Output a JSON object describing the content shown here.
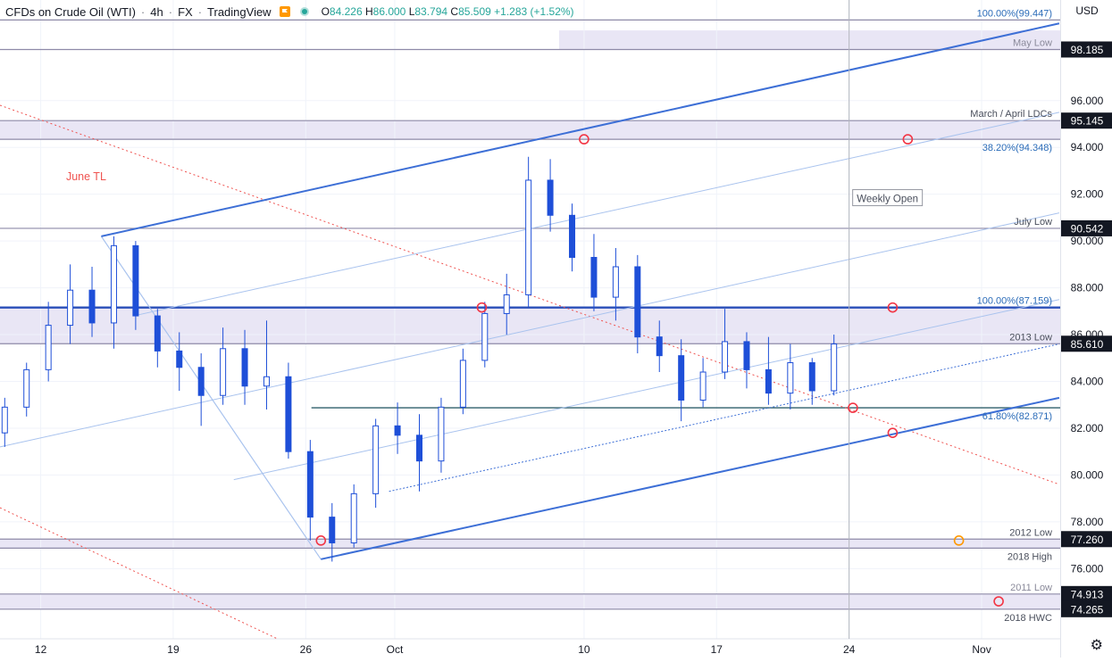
{
  "header": {
    "symbol": "CFDs on Crude Oil (WTI)",
    "interval": "4h",
    "exchange": "FX",
    "platform": "TradingView",
    "open_label": "O",
    "open": "84.226",
    "high_label": "H",
    "high": "86.000",
    "low_label": "L",
    "low": "83.794",
    "close_label": "C",
    "close": "85.509",
    "change": "+1.283 (+1.52%)"
  },
  "currency": "USD",
  "colors": {
    "up": "#1e4fd8",
    "down": "#1e4fd8",
    "channel": "#3d6fd6",
    "inner": "#a9c3ee",
    "zone": "#e9e6f5",
    "trendline": "#ef5350",
    "marker": "#f23645",
    "marker_alt": "#ff9800",
    "teal_line": "#2f5f6a",
    "tag_bg": "#131722"
  },
  "chart_data": {
    "type": "candlestick",
    "title": "CFDs on Crude Oil (WTI) 4h",
    "ylim": [
      73.0,
      100.3
    ],
    "yticks": [
      "76.000",
      "78.000",
      "80.000",
      "82.000",
      "84.000",
      "86.000",
      "88.000",
      "90.000",
      "92.000",
      "94.000",
      "96.000"
    ],
    "x_labels": [
      {
        "label": "12",
        "day": 12
      },
      {
        "label": "19",
        "day": 19
      },
      {
        "label": "26",
        "day": 26
      },
      {
        "label": "Oct",
        "day": 30.7
      },
      {
        "label": "10",
        "day": 40.7
      },
      {
        "label": "17",
        "day": 47.7
      },
      {
        "label": "24",
        "day": 54.7
      },
      {
        "label": "Nov",
        "day": 61.7
      }
    ],
    "x_range_days": [
      9.85,
      65.85
    ],
    "price_tags": [
      "98.185",
      "95.145",
      "90.542",
      "85.610",
      "77.260",
      "74.913",
      "74.265"
    ],
    "levels": [
      {
        "label": "100.00%(99.447)",
        "price": 99.447,
        "style": "line"
      },
      {
        "label": "May Low",
        "price": 98.185,
        "style": "zone"
      },
      {
        "label": "March / April LDCs",
        "price": 95.145,
        "style": "zone"
      },
      {
        "label": "38.20%(94.348)",
        "price": 94.348,
        "style": "line"
      },
      {
        "label": "July Low",
        "price": 90.542,
        "style": "line"
      },
      {
        "label": "100.00%(87.159)",
        "price": 87.159,
        "style": "thick"
      },
      {
        "label": "2013 Low",
        "price": 85.61,
        "style": "line"
      },
      {
        "label": "61.80%(82.871)",
        "price": 82.871,
        "style": "teal"
      },
      {
        "label": "2012 Low",
        "price": 77.26,
        "style": "zone"
      },
      {
        "label": "2018 High",
        "price": 76.875,
        "style": "line"
      },
      {
        "label": "2011 Low",
        "price": 74.913,
        "style": "zone"
      },
      {
        "label": "2018 HWC",
        "price": 74.265,
        "style": "line"
      }
    ],
    "annotations": [
      {
        "text": "June TL",
        "day": 14.4,
        "price": 92.6
      },
      {
        "text": "Weekly Open",
        "day": 54.7,
        "price": 91.7
      }
    ],
    "ohlc_daily": [
      [
        81.8,
        83.3,
        81.2,
        82.9
      ],
      [
        82.9,
        84.8,
        82.5,
        84.5
      ],
      [
        84.5,
        87.4,
        84.0,
        86.4
      ],
      [
        86.4,
        89.0,
        85.6,
        87.9
      ],
      [
        87.9,
        88.9,
        85.9,
        86.5
      ],
      [
        86.5,
        90.2,
        85.4,
        89.8
      ],
      [
        89.8,
        90.0,
        86.2,
        86.8
      ],
      [
        86.8,
        87.1,
        84.6,
        85.3
      ],
      [
        85.3,
        86.1,
        83.6,
        84.6
      ],
      [
        84.6,
        85.2,
        82.1,
        83.4
      ],
      [
        83.4,
        86.3,
        83.0,
        85.4
      ],
      [
        85.4,
        86.2,
        83.0,
        83.8
      ],
      [
        83.8,
        86.6,
        82.8,
        84.2
      ],
      [
        84.2,
        84.8,
        80.7,
        81.0
      ],
      [
        81.0,
        81.5,
        77.2,
        78.2
      ],
      [
        78.2,
        78.8,
        76.3,
        77.1
      ],
      [
        77.1,
        79.6,
        76.9,
        79.2
      ],
      [
        79.2,
        82.4,
        78.6,
        82.1
      ],
      [
        82.1,
        83.1,
        80.9,
        81.7
      ],
      [
        81.7,
        82.6,
        79.3,
        80.6
      ],
      [
        80.6,
        83.3,
        80.1,
        82.9
      ],
      [
        82.9,
        85.4,
        82.6,
        84.9
      ],
      [
        84.9,
        87.4,
        84.6,
        86.9
      ],
      [
        86.9,
        88.6,
        86.0,
        87.7
      ],
      [
        87.7,
        93.6,
        87.2,
        92.6
      ],
      [
        92.6,
        93.5,
        90.4,
        91.1
      ],
      [
        91.1,
        91.6,
        88.7,
        89.3
      ],
      [
        89.3,
        90.3,
        87.0,
        87.6
      ],
      [
        87.6,
        89.7,
        86.6,
        88.9
      ],
      [
        88.9,
        89.4,
        85.2,
        85.9
      ],
      [
        85.9,
        86.6,
        84.4,
        85.1
      ],
      [
        85.1,
        85.8,
        82.3,
        83.2
      ],
      [
        83.2,
        85.0,
        82.9,
        84.4
      ],
      [
        84.4,
        87.1,
        84.1,
        85.7
      ],
      [
        85.7,
        86.1,
        83.7,
        84.5
      ],
      [
        84.5,
        85.9,
        83.0,
        83.5
      ],
      [
        83.5,
        85.6,
        82.8,
        84.8
      ],
      [
        84.8,
        85.0,
        83.0,
        83.6
      ],
      [
        83.6,
        86.0,
        83.4,
        85.6
      ]
    ]
  }
}
